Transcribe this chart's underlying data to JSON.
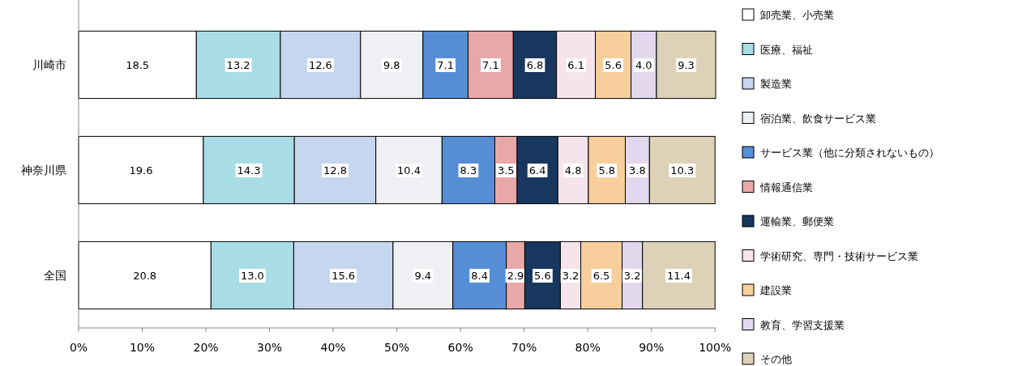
{
  "chart_data": {
    "type": "bar",
    "orientation": "horizontal",
    "stacked": true,
    "legend": "right",
    "categories": [
      "川崎市",
      "神奈川県",
      "全国"
    ],
    "xlim": [
      0,
      100.1
    ],
    "xticks": [
      {
        "value": 0,
        "label": "0%"
      },
      {
        "value": 10,
        "label": "10%"
      },
      {
        "value": 20,
        "label": "20%"
      },
      {
        "value": 30,
        "label": "30%"
      },
      {
        "value": 40,
        "label": "40%"
      },
      {
        "value": 50,
        "label": "50%"
      },
      {
        "value": 60,
        "label": "60%"
      },
      {
        "value": 70,
        "label": "70%"
      },
      {
        "value": 80,
        "label": "80%"
      },
      {
        "value": 90,
        "label": "90%"
      },
      {
        "value": 100,
        "label": "100%"
      }
    ],
    "series": [
      {
        "name": "卸売業、小売業",
        "color": "#ffffff",
        "values": [
          18.5,
          19.6,
          20.8
        ],
        "value_labels": [
          "18.5",
          "19.6",
          "20.8"
        ]
      },
      {
        "name": "医療、福祉",
        "color": "#a8dde6",
        "values": [
          13.2,
          14.3,
          13.0
        ],
        "value_labels": [
          "13.2",
          "14.3",
          "13.0"
        ]
      },
      {
        "name": "製造業",
        "color": "#c6d6ee",
        "values": [
          12.6,
          12.8,
          15.6
        ],
        "value_labels": [
          "12.6",
          "12.8",
          "15.6"
        ]
      },
      {
        "name": "宿泊業、飲食サービス業",
        "color": "#eef0f4",
        "values": [
          9.8,
          10.4,
          9.4
        ],
        "value_labels": [
          "9.8",
          "10.4",
          "9.4"
        ]
      },
      {
        "name": "サービス業（他に分類されないもの）",
        "color": "#558ed5",
        "values": [
          7.1,
          8.3,
          8.4
        ],
        "value_labels": [
          "7.1",
          "8.3",
          "8.4"
        ]
      },
      {
        "name": "情報通信業",
        "color": "#e8a8a8",
        "values": [
          7.1,
          3.5,
          2.9
        ],
        "value_labels": [
          "7.1",
          "3.5",
          "2.9"
        ]
      },
      {
        "name": "運輸業、郵便業",
        "color": "#17375e",
        "values": [
          6.8,
          6.4,
          5.6
        ],
        "value_labels": [
          "6.8",
          "6.4",
          "5.6"
        ]
      },
      {
        "name": "学術研究、専門・技術サービス業",
        "color": "#f6e4ec",
        "values": [
          6.1,
          4.8,
          3.2
        ],
        "value_labels": [
          "6.1",
          "4.8",
          "3.2"
        ]
      },
      {
        "name": "建設業",
        "color": "#f8cf9c",
        "values": [
          5.6,
          5.8,
          6.5
        ],
        "value_labels": [
          "5.6",
          "5.8",
          "6.5"
        ]
      },
      {
        "name": "教育、学習支援業",
        "color": "#e2d8ee",
        "values": [
          4.0,
          3.8,
          3.2
        ],
        "value_labels": [
          "4.0",
          "3.8",
          "3.2"
        ]
      },
      {
        "name": "その他",
        "color": "#ddd2b8",
        "values": [
          9.3,
          10.3,
          11.4
        ],
        "value_labels": [
          "9.3",
          "10.3",
          "11.4"
        ]
      }
    ]
  }
}
